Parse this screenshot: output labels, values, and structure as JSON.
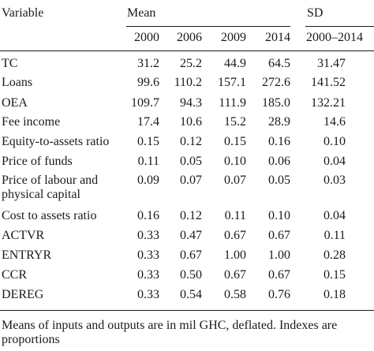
{
  "table": {
    "header": {
      "variable": "Variable",
      "mean": "Mean",
      "sd": "SD",
      "years": [
        "2000",
        "2006",
        "2009",
        "2014"
      ],
      "sd_period": "2000–2014"
    },
    "rows": [
      {
        "label": [
          "TC"
        ],
        "values": [
          "31.2",
          "25.2",
          "44.9",
          "64.5"
        ],
        "sd": "31.47"
      },
      {
        "label": [
          "Loans"
        ],
        "values": [
          "99.6",
          "110.2",
          "157.1",
          "272.6"
        ],
        "sd": "141.52"
      },
      {
        "label": [
          "OEA"
        ],
        "values": [
          "109.7",
          "94.3",
          "111.9",
          "185.0"
        ],
        "sd": "132.21"
      },
      {
        "label": [
          "Fee income"
        ],
        "values": [
          "17.4",
          "10.6",
          "15.2",
          "28.9"
        ],
        "sd": "14.6"
      },
      {
        "label": [
          "Equity-to-assets ratio"
        ],
        "values": [
          "0.15",
          "0.12",
          "0.15",
          "0.16"
        ],
        "sd": "0.10"
      },
      {
        "label": [
          "Price of funds"
        ],
        "values": [
          "0.11",
          "0.05",
          "0.10",
          "0.06"
        ],
        "sd": "0.04"
      },
      {
        "label": [
          "Price of labour and",
          "physical capital"
        ],
        "values": [
          "0.09",
          "0.07",
          "0.07",
          "0.05"
        ],
        "sd": "0.03"
      },
      {
        "label": [
          "Cost to assets ratio"
        ],
        "values": [
          "0.16",
          "0.12",
          "0.11",
          "0.10"
        ],
        "sd": "0.04"
      },
      {
        "label": [
          "ACTVR"
        ],
        "values": [
          "0.33",
          "0.47",
          "0.67",
          "0.67"
        ],
        "sd": "0.11"
      },
      {
        "label": [
          "ENTRYR"
        ],
        "values": [
          "0.33",
          "0.67",
          "1.00",
          "1.00"
        ],
        "sd": "0.28"
      },
      {
        "label": [
          "CCR"
        ],
        "values": [
          "0.33",
          "0.50",
          "0.67",
          "0.67"
        ],
        "sd": "0.15"
      },
      {
        "label": [
          "DEREG"
        ],
        "values": [
          "0.33",
          "0.54",
          "0.58",
          "0.76"
        ],
        "sd": "0.18"
      }
    ],
    "footnote": [
      "Means of inputs and outputs are in mil GHC, deflated. Indexes are",
      "proportions"
    ]
  }
}
